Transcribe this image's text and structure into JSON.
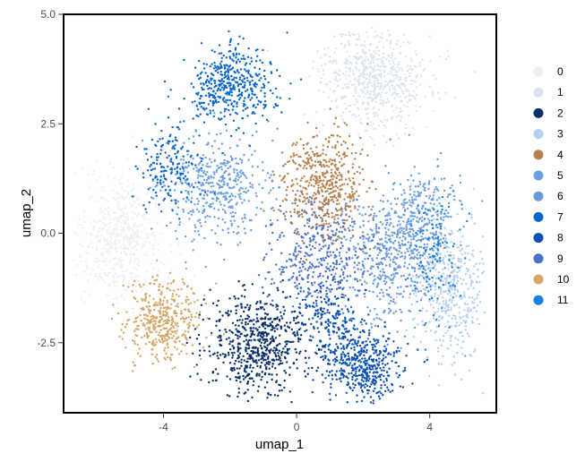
{
  "chart_data": {
    "type": "scatter",
    "title": "",
    "xlabel": "umap_1",
    "ylabel": "umap_2",
    "xlim": [
      -7.0,
      6.0
    ],
    "ylim": [
      -4.1,
      5.0
    ],
    "x_ticks": [
      -4,
      0,
      4
    ],
    "x_tick_labels": [
      "-4",
      "0",
      "4"
    ],
    "y_ticks": [
      -2.5,
      0.0,
      2.5,
      5.0
    ],
    "y_tick_labels": [
      "-2.5",
      "0.0",
      "2.5",
      "5.0"
    ],
    "grid": false,
    "legend_position": "right",
    "series": [
      {
        "name": "0",
        "color": "#F0F0F2",
        "clusters": [
          {
            "cx": -5.3,
            "cy": -0.1,
            "sx": 0.85,
            "sy": 0.95,
            "n": 600
          }
        ]
      },
      {
        "name": "1",
        "color": "#DEE3F0",
        "clusters": [
          {
            "cx": 2.3,
            "cy": 3.5,
            "sx": 1.1,
            "sy": 0.75,
            "n": 650
          }
        ]
      },
      {
        "name": "2",
        "color": "#08306B",
        "clusters": [
          {
            "cx": -1.2,
            "cy": -2.6,
            "sx": 1.0,
            "sy": 0.75,
            "n": 650
          }
        ]
      },
      {
        "name": "3",
        "color": "#B5D0F0",
        "clusters": [
          {
            "cx": 4.6,
            "cy": -1.3,
            "sx": 0.75,
            "sy": 1.1,
            "n": 450
          }
        ]
      },
      {
        "name": "4",
        "color": "#B5824E",
        "clusters": [
          {
            "cx": 0.8,
            "cy": 1.1,
            "sx": 0.85,
            "sy": 0.8,
            "n": 500
          }
        ]
      },
      {
        "name": "5",
        "color": "#6CA0E0",
        "clusters": [
          {
            "cx": -2.5,
            "cy": 1.0,
            "sx": 1.1,
            "sy": 0.8,
            "n": 450
          },
          {
            "cx": 3.6,
            "cy": 0.3,
            "sx": 0.8,
            "sy": 0.8,
            "n": 300
          }
        ]
      },
      {
        "name": "6",
        "color": "#6A9ADB",
        "clusters": [
          {
            "cx": 2.8,
            "cy": -0.6,
            "sx": 1.0,
            "sy": 0.9,
            "n": 450
          }
        ]
      },
      {
        "name": "7",
        "color": "#0A66CC",
        "clusters": [
          {
            "cx": -2.0,
            "cy": 3.4,
            "sx": 0.85,
            "sy": 0.6,
            "n": 450
          },
          {
            "cx": -3.8,
            "cy": 1.5,
            "sx": 0.6,
            "sy": 0.6,
            "n": 180
          }
        ]
      },
      {
        "name": "8",
        "color": "#0A50B4",
        "clusters": [
          {
            "cx": 2.0,
            "cy": -3.0,
            "sx": 0.75,
            "sy": 0.55,
            "n": 450
          },
          {
            "cx": 1.0,
            "cy": -2.0,
            "sx": 0.7,
            "sy": 0.6,
            "n": 200
          }
        ]
      },
      {
        "name": "9",
        "color": "#4A70C8",
        "clusters": [
          {
            "cx": 0.6,
            "cy": -0.5,
            "sx": 1.0,
            "sy": 0.9,
            "n": 400
          }
        ]
      },
      {
        "name": "10",
        "color": "#D4A868",
        "clusters": [
          {
            "cx": -4.0,
            "cy": -2.0,
            "sx": 0.75,
            "sy": 0.6,
            "n": 420
          }
        ]
      },
      {
        "name": "11",
        "color": "#1A80E0",
        "clusters": [
          {
            "cx": 4.2,
            "cy": -0.6,
            "sx": 0.5,
            "sy": 0.9,
            "n": 120
          }
        ]
      }
    ]
  }
}
